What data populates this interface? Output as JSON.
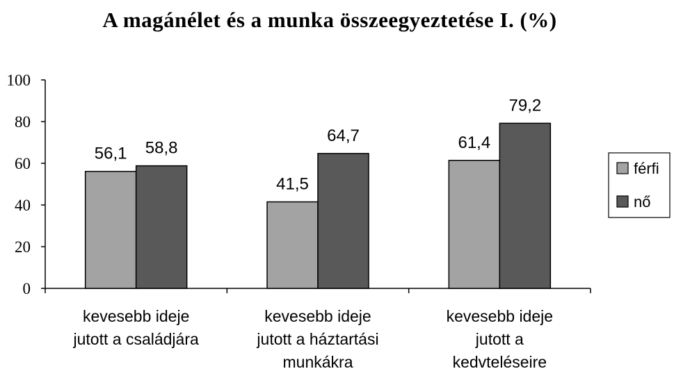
{
  "chart_data": {
    "type": "bar",
    "title": "A magánélet és a munka összeegyeztetése I. (%)",
    "xlabel": "",
    "ylabel": "",
    "ylim": [
      0,
      100
    ],
    "yticks": [
      "0",
      "20",
      "40",
      "60",
      "80",
      "100"
    ],
    "ytick_values": [
      0,
      20,
      40,
      60,
      80,
      100
    ],
    "grid": false,
    "legend_position": "right",
    "categories": [
      [
        "kevesebb ideje",
        "jutott a családjára"
      ],
      [
        "kevesebb ideje",
        "jutott a háztartási",
        "munkákra"
      ],
      [
        "kevesebb ideje",
        "jutott a",
        "kedvteléseire"
      ]
    ],
    "series": [
      {
        "name": "férfi",
        "color": "#a3a3a3",
        "values": [
          56.1,
          41.5,
          61.4
        ],
        "labels": [
          "56,1",
          "41,5",
          "61,4"
        ]
      },
      {
        "name": "nő",
        "color": "#595959",
        "values": [
          58.8,
          64.7,
          79.2
        ],
        "labels": [
          "58,8",
          "64,7",
          "79,2"
        ]
      }
    ]
  }
}
